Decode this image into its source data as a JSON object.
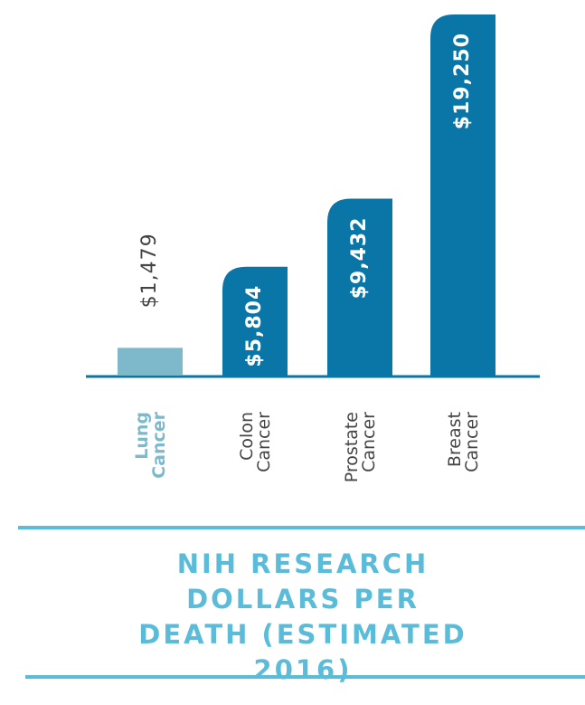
{
  "chart_data": {
    "type": "bar",
    "title": "NIH RESEARCH DOLLARS PER DEATH (ESTIMATED 2016)",
    "categories": [
      "Lung Cancer",
      "Colon Cancer",
      "Prostate Cancer",
      "Breast Cancer"
    ],
    "values": [
      1479,
      5804,
      9432,
      19250
    ],
    "value_labels": [
      "$1,479",
      "$5,804",
      "$9,432",
      "$19,250"
    ],
    "colors": [
      "#7eb9cb",
      "#0a76a8",
      "#0a76a8",
      "#0a76a8"
    ]
  }
}
